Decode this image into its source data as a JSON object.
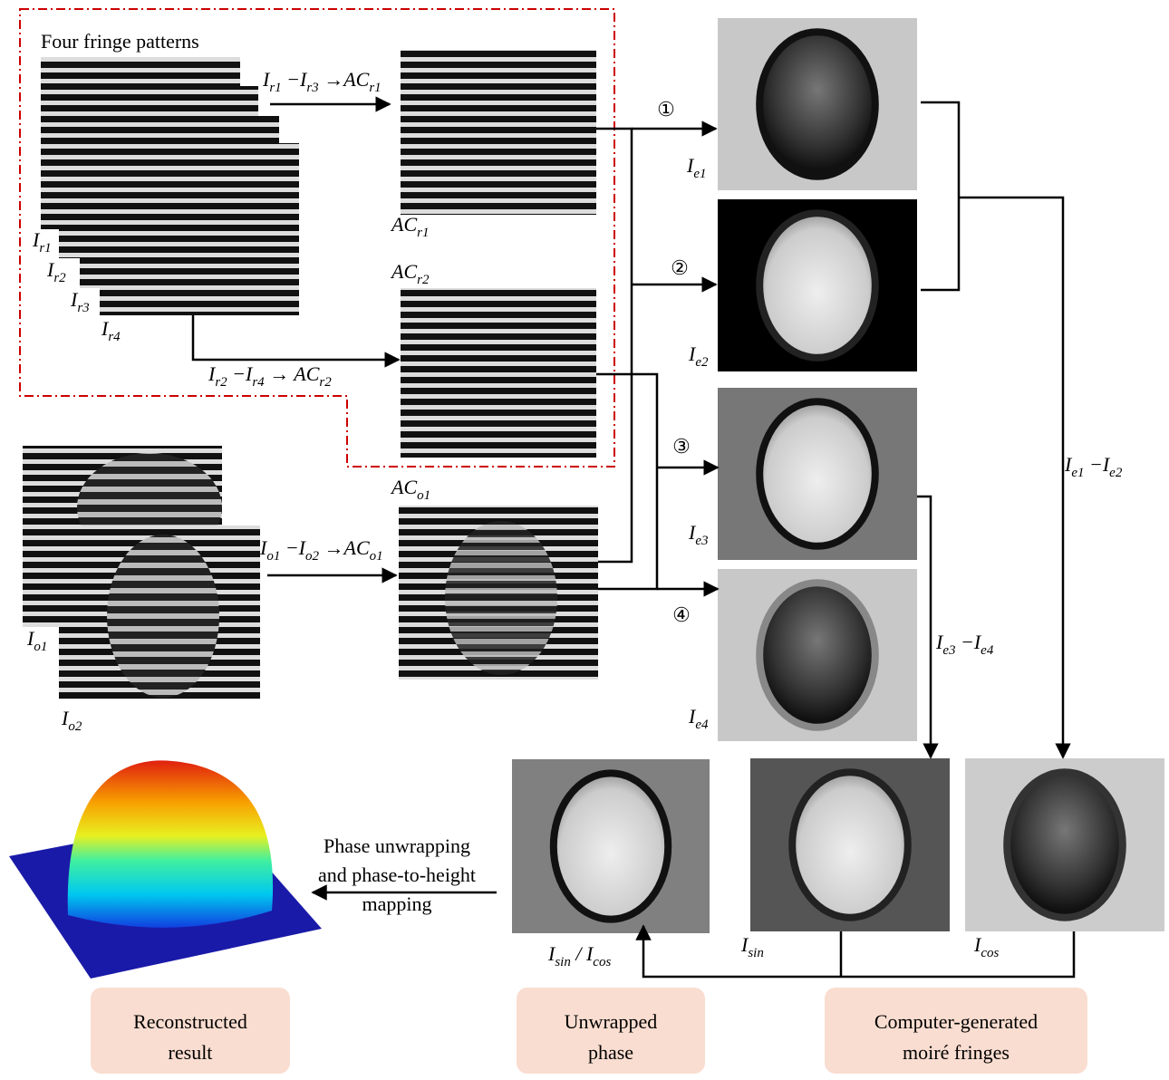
{
  "title": "Four fringe patterns",
  "labels": [
    [
      {
        "text": "I"
      },
      {
        "text": "r1",
        "sub": true
      }
    ],
    [
      {
        "text": "I"
      },
      {
        "text": "r2",
        "sub": true
      }
    ],
    [
      {
        "text": "I"
      },
      {
        "text": "r3",
        "sub": true
      }
    ],
    [
      {
        "text": "I"
      },
      {
        "text": "r4",
        "sub": true
      }
    ],
    [
      {
        "text": "AC"
      },
      {
        "text": "r1",
        "sub": true
      }
    ],
    [
      {
        "text": "AC"
      },
      {
        "text": "r2",
        "sub": true
      }
    ],
    [
      {
        "text": "I"
      },
      {
        "text": "o1",
        "sub": true
      }
    ],
    [
      {
        "text": "I"
      },
      {
        "text": "o2",
        "sub": true
      }
    ],
    [
      {
        "text": "AC"
      },
      {
        "text": "o1",
        "sub": true
      }
    ],
    [
      {
        "text": "I"
      },
      {
        "text": "e1",
        "sub": true
      }
    ],
    [
      {
        "text": "I"
      },
      {
        "text": "e2",
        "sub": true
      }
    ],
    [
      {
        "text": "I"
      },
      {
        "text": "e3",
        "sub": true
      }
    ],
    [
      {
        "text": "I"
      },
      {
        "text": "e4",
        "sub": true
      }
    ],
    [
      {
        "text": "I"
      },
      {
        "text": "sin",
        "sub": true
      }
    ],
    [
      {
        "text": "I"
      },
      {
        "text": "cos",
        "sub": true
      }
    ],
    [
      {
        "text": "I"
      },
      {
        "text": "sin",
        "sub": true
      },
      {
        "text": " / I"
      },
      {
        "text": "cos",
        "sub": true
      }
    ],
    [
      {
        "text": "I"
      },
      {
        "text": "r1",
        "sub": true
      },
      {
        "text": " −I"
      },
      {
        "text": "r3",
        "sub": true
      },
      {
        "text": " →AC"
      },
      {
        "text": "r1",
        "sub": true
      }
    ],
    [
      {
        "text": "I"
      },
      {
        "text": "r2",
        "sub": true
      },
      {
        "text": " −I"
      },
      {
        "text": "r4",
        "sub": true
      },
      {
        "text": " → AC"
      },
      {
        "text": "r2",
        "sub": true
      }
    ],
    [
      {
        "text": "I"
      },
      {
        "text": "o1",
        "sub": true
      },
      {
        "text": " −I"
      },
      {
        "text": "o2",
        "sub": true
      },
      {
        "text": " →AC"
      },
      {
        "text": "o1",
        "sub": true
      }
    ],
    [
      {
        "text": "I"
      },
      {
        "text": "e1",
        "sub": true
      },
      {
        "text": " −I"
      },
      {
        "text": "e2",
        "sub": true
      }
    ],
    [
      {
        "text": "I"
      },
      {
        "text": "e3",
        "sub": true
      },
      {
        "text": " −I"
      },
      {
        "text": "e4",
        "sub": true
      }
    ]
  ],
  "steps": [
    "①",
    "②",
    "③",
    "④"
  ],
  "note": [
    "Phase unwrapping",
    "and phase-to-height",
    "mapping"
  ],
  "boxes": [
    [
      "Reconstructed",
      "result"
    ],
    [
      "Unwrapped",
      "phase"
    ],
    [
      "Computer-generated",
      "moiré fringes"
    ]
  ]
}
